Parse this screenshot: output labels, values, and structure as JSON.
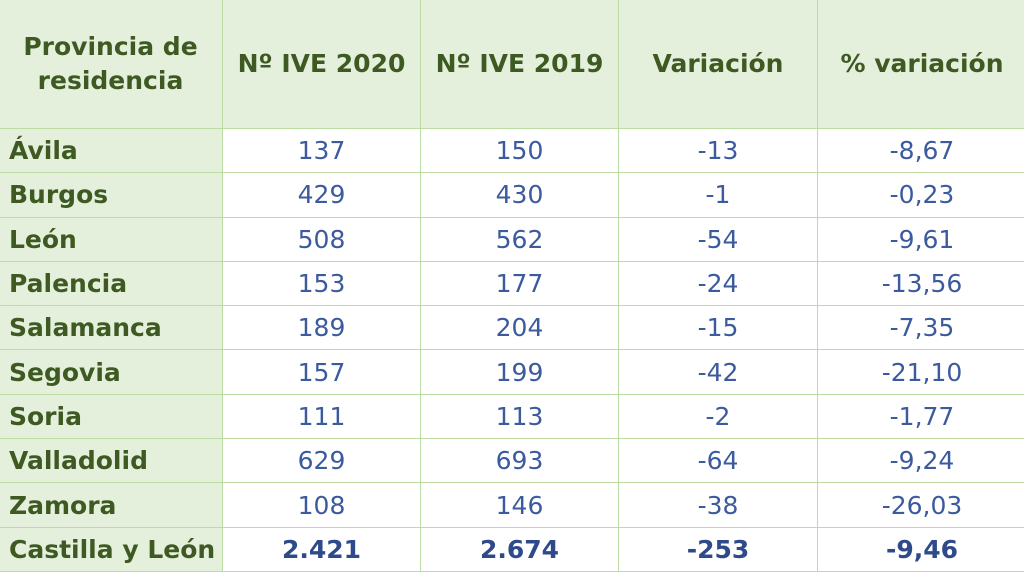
{
  "table": {
    "headers": [
      "Provincia de residencia",
      "Nº IVE 2020",
      "Nº IVE 2019",
      "Variación",
      "% variación"
    ],
    "rows": [
      [
        "Ávila",
        "137",
        "150",
        "-13",
        "-8,67"
      ],
      [
        "Burgos",
        "429",
        "430",
        "-1",
        "-0,23"
      ],
      [
        "León",
        "508",
        "562",
        "-54",
        "-9,61"
      ],
      [
        "Palencia",
        "153",
        "177",
        "-24",
        "-13,56"
      ],
      [
        "Salamanca",
        "189",
        "204",
        "-15",
        "-7,35"
      ],
      [
        "Segovia",
        "157",
        "199",
        "-42",
        "-21,10"
      ],
      [
        "Soria",
        "111",
        "113",
        "-2",
        "-1,77"
      ],
      [
        "Valladolid",
        "629",
        "693",
        "-64",
        "-9,24"
      ],
      [
        "Zamora",
        "108",
        "146",
        "-38",
        "-26,03"
      ]
    ],
    "total": [
      "Castilla y León",
      "2.421",
      "2.674",
      "-253",
      "-9,46"
    ]
  },
  "colors": {
    "header_bg": "#e4f0dc",
    "header_text": "#3e5a22",
    "value_text": "#3c5a9e",
    "border": "#bcdca4"
  }
}
